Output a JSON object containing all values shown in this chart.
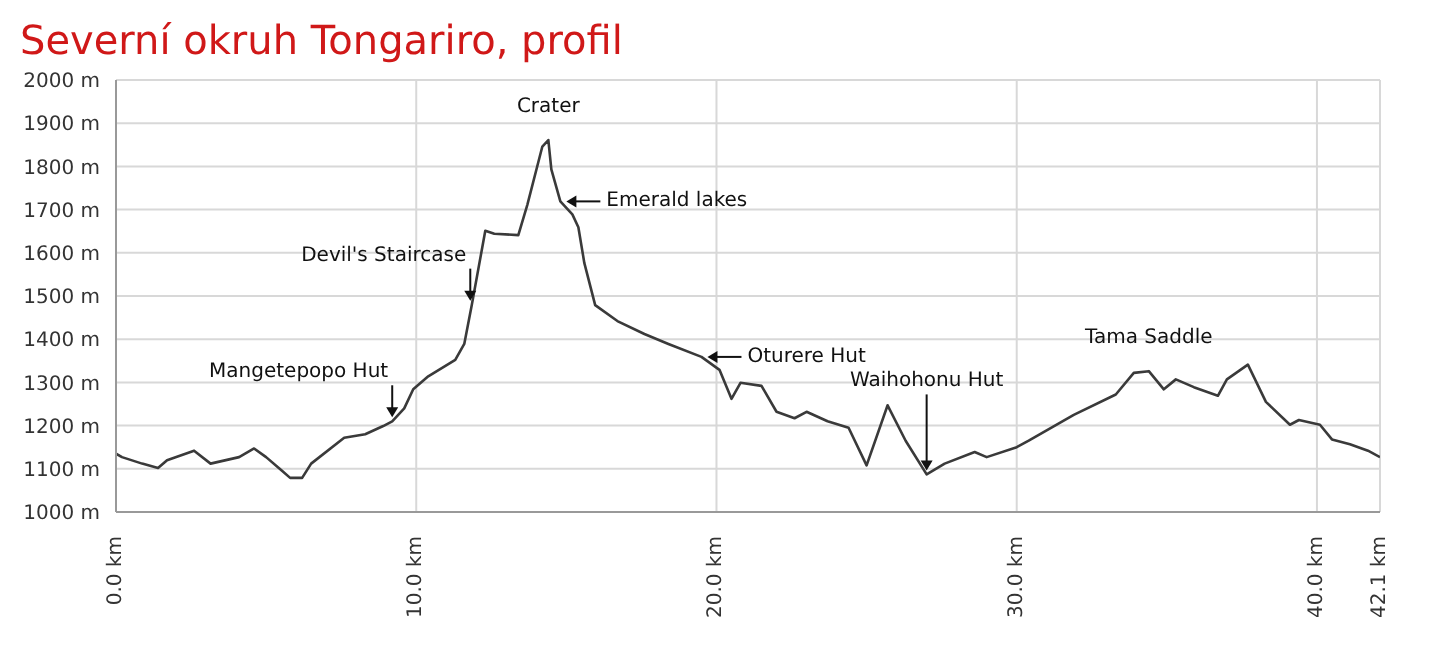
{
  "chart_data": {
    "type": "line",
    "title": "Severní okruh Tongariro, profil",
    "x": [
      0,
      0.2,
      0.87,
      1.4,
      1.7,
      2.6,
      3.15,
      4.1,
      4.6,
      5.0,
      5.5,
      5.8,
      6.2,
      6.5,
      7.6,
      8.3,
      8.9,
      9.2,
      9.6,
      9.9,
      10.4,
      11.3,
      11.6,
      11.85,
      12.3,
      12.6,
      13.4,
      13.7,
      14.2,
      14.4,
      14.5,
      14.8,
      15.2,
      15.4,
      15.6,
      15.96,
      16.7,
      17.6,
      18.4,
      19.5,
      20.1,
      20.5,
      20.8,
      21.5,
      22.0,
      22.6,
      23.0,
      23.7,
      24.4,
      25.0,
      25.7,
      26.3,
      27.0,
      27.6,
      28.6,
      29.0,
      30,
      30.4,
      31.9,
      33.3,
      33.9,
      34.4,
      34.9,
      35.3,
      35.9,
      36.7,
      37.0,
      37.7,
      38.3,
      39.1,
      39.4,
      40.1,
      40.5,
      41.1,
      41.7,
      42.1
    ],
    "series": [
      {
        "color": "#3a3a3a",
        "values": [
          1135,
          1127,
          1112,
          1102,
          1120,
          1142,
          1112,
          1127,
          1147,
          1127,
          1097,
          1079,
          1079,
          1112,
          1172,
          1180,
          1199,
          1210,
          1240,
          1284,
          1314,
          1352,
          1389,
          1479,
          1651,
          1644,
          1641,
          1711,
          1846,
          1861,
          1793,
          1719,
          1689,
          1659,
          1576,
          1479,
          1442,
          1412,
          1389,
          1359,
          1329,
          1262,
          1299,
          1292,
          1232,
          1217,
          1232,
          1210,
          1195,
          1108,
          1247,
          1165,
          1087,
          1112,
          1139,
          1127,
          1150,
          1165,
          1225,
          1272,
          1322,
          1326,
          1284,
          1307,
          1289,
          1269,
          1307,
          1341,
          1255,
          1202,
          1213,
          1202,
          1168,
          1157,
          1142,
          1127
        ]
      }
    ],
    "xlim": [
      0,
      42.1
    ],
    "ylim": [
      1000,
      2000
    ],
    "xticks": [
      {
        "value": 0,
        "label": "0.0 km"
      },
      {
        "value": 10,
        "label": "10.0 km"
      },
      {
        "value": 20,
        "label": "20.0 km"
      },
      {
        "value": 30,
        "label": "30.0 km"
      },
      {
        "value": 40,
        "label": "40.0 km"
      },
      {
        "value": 42.1,
        "label": "42.1 km"
      }
    ],
    "yticks": [
      {
        "value": 1000,
        "label": "1000 m"
      },
      {
        "value": 1100,
        "label": "1100 m"
      },
      {
        "value": 1200,
        "label": "1200 m"
      },
      {
        "value": 1300,
        "label": "1300 m"
      },
      {
        "value": 1400,
        "label": "1400 m"
      },
      {
        "value": 1500,
        "label": "1500 m"
      },
      {
        "value": 1600,
        "label": "1600 m"
      },
      {
        "value": 1700,
        "label": "1700 m"
      },
      {
        "value": 1800,
        "label": "1800 m"
      },
      {
        "value": 1900,
        "label": "1900 m"
      },
      {
        "value": 2000,
        "label": "2000 m"
      }
    ],
    "grid": true,
    "marker": "none",
    "line_style": "solid",
    "annotations": [
      {
        "text": "Mangetepopo Hut",
        "x": 9.2,
        "y": 1210
      },
      {
        "text": "Devil's Staircase",
        "x": 11.8,
        "y": 1480
      },
      {
        "text": "Crater",
        "x": 14.4,
        "y": 1861
      },
      {
        "text": "Emerald lakes",
        "x": 14.8,
        "y": 1719
      },
      {
        "text": "Oturere Hut",
        "x": 19.5,
        "y": 1359
      },
      {
        "text": "Waihohonu Hut",
        "x": 27.0,
        "y": 1087
      },
      {
        "text": "Tama Saddle",
        "x": 34.4,
        "y": 1326
      }
    ]
  }
}
